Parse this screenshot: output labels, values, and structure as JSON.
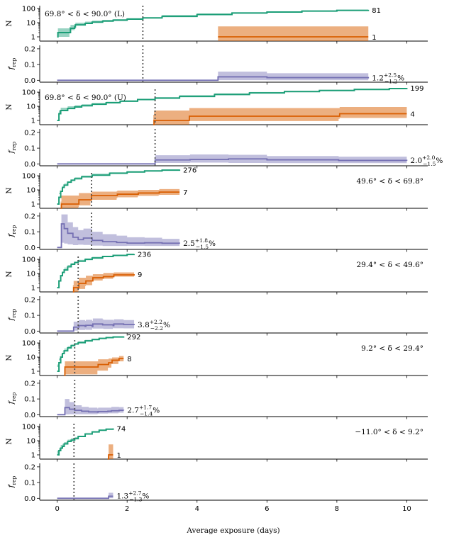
{
  "figure": {
    "xlabel": "Average exposure (days)",
    "x_ticks": [
      "0",
      "2",
      "4",
      "6",
      "8",
      "10"
    ],
    "xlim": [
      -0.5,
      10.6
    ]
  },
  "colors": {
    "count_all": "#1b9e77",
    "count_rep": "#d95f02",
    "frac": "#7570b3",
    "marker": "#555555"
  },
  "axis_labels": {
    "n": "N",
    "f_base": "f",
    "f_sub": "rep"
  },
  "n_ticks": [
    "100",
    "10",
    "1"
  ],
  "f_ticks": [
    "0.2",
    "0.1",
    "0.0"
  ],
  "chart_data": [
    {
      "type": "line",
      "band": "69.8° < δ < 90.0° (L)",
      "band_pos": "top-left",
      "marker_x": 2.45,
      "total": {
        "label": "81",
        "x": [
          0,
          0.02,
          0.35,
          0.38,
          0.5,
          0.52,
          0.8,
          1.0,
          1.3,
          1.6,
          2.0,
          2.45,
          3.0,
          4.0,
          5.0,
          6.0,
          7.0,
          8.0,
          8.9
        ],
        "n": [
          1,
          2,
          2,
          4,
          5,
          7,
          9,
          11,
          13,
          15,
          18,
          22,
          28,
          38,
          48,
          57,
          66,
          74,
          81
        ],
        "lo": [
          1,
          1,
          1,
          2,
          3,
          5,
          7,
          9,
          11,
          13,
          16,
          20,
          25,
          35,
          45,
          54,
          63,
          71,
          78
        ],
        "hi": [
          2,
          4,
          5,
          7,
          8,
          10,
          12,
          14,
          16,
          18,
          21,
          25,
          31,
          41,
          51,
          60,
          69,
          77,
          84
        ]
      },
      "repeaters": {
        "label": "1",
        "x": [
          4.6,
          8.9
        ],
        "n": [
          1,
          1
        ],
        "lo": [
          0.5,
          0.5
        ],
        "hi": [
          5.5,
          5.5
        ]
      },
      "fraction": {
        "value": "1.2",
        "plus": "+2.5",
        "minus": "−1.2",
        "unit": "%",
        "x": [
          0,
          4.55,
          4.6,
          6.0,
          8.9
        ],
        "f": [
          0,
          0,
          0.022,
          0.017,
          0.012
        ],
        "lo": [
          0,
          0,
          0.001,
          0.001,
          0.0005
        ],
        "hi": [
          0.003,
          0.003,
          0.055,
          0.045,
          0.037
        ]
      }
    },
    {
      "type": "line",
      "band": "69.8° < δ < 90.0° (U)",
      "band_pos": "top-left",
      "marker_x": 2.8,
      "total": {
        "label": "199",
        "x": [
          0,
          0.05,
          0.1,
          0.3,
          0.5,
          0.7,
          1.0,
          1.4,
          1.8,
          2.3,
          2.8,
          3.5,
          4.5,
          5.5,
          6.5,
          7.5,
          8.5,
          9.5,
          10.0
        ],
        "n": [
          1,
          3,
          5,
          7,
          9,
          11,
          14,
          18,
          23,
          30,
          38,
          50,
          68,
          88,
          110,
          130,
          155,
          180,
          199
        ],
        "lo": [
          1,
          2,
          3,
          5,
          7,
          9,
          12,
          15,
          20,
          26,
          34,
          45,
          62,
          82,
          103,
          123,
          147,
          172,
          190
        ],
        "hi": [
          2,
          5,
          8,
          10,
          12,
          14,
          17,
          21,
          27,
          34,
          43,
          56,
          75,
          95,
          118,
          138,
          164,
          189,
          208
        ]
      },
      "repeaters": {
        "label": "4",
        "x": [
          2.75,
          2.77,
          3.75,
          3.78,
          4.9,
          8.05,
          8.08,
          10.0
        ],
        "n": [
          0.5,
          1,
          1,
          2,
          2,
          2,
          3,
          3
        ],
        "lo": [
          0.5,
          0.5,
          0.5,
          0.5,
          0.9,
          0.9,
          1.3,
          1.5
        ],
        "hi": [
          2.5,
          5,
          5,
          7.5,
          7.5,
          7.5,
          9,
          9
        ]
      },
      "fraction": {
        "value": "2.0",
        "plus": "+2.0",
        "minus": "−1.5",
        "unit": "%",
        "x": [
          0,
          2.75,
          2.8,
          3.8,
          4.9,
          6.0,
          8.05,
          10.0
        ],
        "f": [
          0,
          0,
          0.025,
          0.028,
          0.032,
          0.026,
          0.022,
          0.02
        ],
        "lo": [
          0,
          0,
          0.004,
          0.006,
          0.008,
          0.006,
          0.005,
          0.005
        ],
        "hi": [
          0.003,
          0.003,
          0.055,
          0.06,
          0.058,
          0.05,
          0.046,
          0.04
        ]
      }
    },
    {
      "type": "line",
      "band": "49.6° < δ < 69.8°",
      "band_pos": "top-right",
      "marker_x": 0.98,
      "total": {
        "label": "276",
        "x": [
          0,
          0.05,
          0.1,
          0.15,
          0.2,
          0.3,
          0.4,
          0.5,
          0.7,
          1.0,
          1.5,
          2.0,
          2.5,
          3.0,
          3.5
        ],
        "n": [
          1,
          3,
          8,
          15,
          22,
          35,
          48,
          62,
          85,
          110,
          150,
          185,
          220,
          250,
          276
        ],
        "lo": [
          1,
          2,
          6,
          12,
          18,
          30,
          42,
          56,
          78,
          102,
          140,
          175,
          209,
          238,
          264
        ],
        "hi": [
          2,
          5,
          11,
          19,
          27,
          41,
          55,
          69,
          93,
          119,
          160,
          195,
          231,
          262,
          288
        ]
      },
      "repeaters": {
        "label": "7",
        "x": [
          0.1,
          0.12,
          0.6,
          0.62,
          0.95,
          0.98,
          1.7,
          1.72,
          2.3,
          2.32,
          2.9,
          2.92,
          3.5
        ],
        "n": [
          0.5,
          1,
          1,
          2,
          2,
          4,
          4,
          5,
          5,
          6,
          6,
          7,
          7
        ],
        "lo": [
          0.5,
          0.5,
          0.5,
          0.6,
          0.8,
          1.6,
          2.0,
          2.6,
          3.0,
          3.4,
          3.8,
          4.2,
          4.5
        ],
        "hi": [
          1.5,
          4,
          4,
          6,
          6,
          7.5,
          8,
          9,
          9,
          10,
          10,
          11.5,
          11.5
        ]
      },
      "fraction": {
        "value": "2.5",
        "plus": "+1.8",
        "minus": "−1.5",
        "unit": "%",
        "x": [
          0,
          0.1,
          0.12,
          0.2,
          0.3,
          0.45,
          0.6,
          0.75,
          1.0,
          1.3,
          1.7,
          2.0,
          2.5,
          3.0,
          3.5
        ],
        "f": [
          0,
          0,
          0.15,
          0.12,
          0.09,
          0.065,
          0.05,
          0.06,
          0.045,
          0.037,
          0.032,
          0.028,
          0.03,
          0.027,
          0.025
        ],
        "lo": [
          0,
          0,
          0.02,
          0.03,
          0.025,
          0.02,
          0.015,
          0.018,
          0.016,
          0.012,
          0.01,
          0.01,
          0.011,
          0.01,
          0.01
        ],
        "hi": [
          0.003,
          0.003,
          0.21,
          0.21,
          0.16,
          0.13,
          0.11,
          0.12,
          0.1,
          0.085,
          0.075,
          0.065,
          0.062,
          0.055,
          0.045
        ]
      }
    },
    {
      "type": "line",
      "band": "29.4° < δ < 49.6°",
      "band_pos": "top-right",
      "marker_x": 0.6,
      "total": {
        "label": "236",
        "x": [
          0,
          0.05,
          0.1,
          0.15,
          0.2,
          0.3,
          0.4,
          0.5,
          0.6,
          0.8,
          1.0,
          1.3,
          1.6,
          2.0,
          2.2
        ],
        "n": [
          1,
          3,
          7,
          12,
          18,
          30,
          45,
          60,
          75,
          100,
          125,
          160,
          190,
          222,
          236
        ],
        "lo": [
          1,
          2,
          5,
          10,
          15,
          26,
          40,
          54,
          68,
          92,
          116,
          150,
          179,
          210,
          223
        ],
        "hi": [
          2,
          5,
          10,
          15,
          22,
          35,
          51,
          67,
          82,
          108,
          134,
          170,
          201,
          234,
          249
        ]
      },
      "repeaters": {
        "label": "9",
        "x": [
          0.45,
          0.47,
          0.6,
          0.62,
          0.8,
          0.82,
          1.0,
          1.02,
          1.3,
          1.32,
          1.6,
          1.62,
          2.2
        ],
        "n": [
          0.5,
          1,
          1,
          2,
          2,
          3,
          3,
          5,
          5,
          6,
          6,
          8,
          9
        ],
        "lo": [
          0.5,
          0.5,
          0.5,
          0.6,
          0.8,
          1.3,
          1.5,
          2.8,
          3.2,
          4.0,
          4.2,
          5.5,
          6.0
        ],
        "hi": [
          1.5,
          3,
          3,
          5,
          5,
          7,
          7,
          9,
          9,
          11,
          11,
          12,
          13
        ]
      },
      "fraction": {
        "value": "3.8",
        "plus": "+2.2",
        "minus": "−2.2",
        "unit": "%",
        "x": [
          0,
          0.45,
          0.47,
          0.6,
          0.62,
          0.8,
          0.82,
          1.0,
          1.02,
          1.3,
          1.32,
          1.6,
          1.62,
          1.9,
          2.2
        ],
        "f": [
          0,
          0,
          0.025,
          0.025,
          0.035,
          0.03,
          0.037,
          0.03,
          0.045,
          0.04,
          0.04,
          0.035,
          0.045,
          0.042,
          0.038
        ],
        "lo": [
          0,
          0,
          0.003,
          0.003,
          0.008,
          0.007,
          0.01,
          0.008,
          0.018,
          0.016,
          0.016,
          0.014,
          0.02,
          0.018,
          0.017
        ],
        "hi": [
          0.003,
          0.003,
          0.06,
          0.055,
          0.07,
          0.065,
          0.072,
          0.065,
          0.08,
          0.075,
          0.072,
          0.068,
          0.075,
          0.07,
          0.06
        ]
      }
    },
    {
      "type": "line",
      "band": "9.2° < δ < 29.4°",
      "band_pos": "top-right",
      "marker_x": 0.5,
      "total": {
        "label": "292",
        "x": [
          0,
          0.05,
          0.1,
          0.15,
          0.2,
          0.3,
          0.4,
          0.5,
          0.6,
          0.8,
          1.0,
          1.2,
          1.4,
          1.6,
          1.9
        ],
        "n": [
          1,
          4,
          10,
          18,
          28,
          45,
          65,
          85,
          105,
          140,
          175,
          210,
          240,
          265,
          292
        ],
        "lo": [
          1,
          3,
          8,
          15,
          24,
          40,
          59,
          78,
          97,
          131,
          165,
          199,
          228,
          252,
          278
        ],
        "hi": [
          2,
          6,
          13,
          22,
          33,
          51,
          72,
          93,
          114,
          150,
          186,
          222,
          253,
          279,
          307
        ]
      },
      "repeaters": {
        "label": "8",
        "x": [
          0.2,
          0.22,
          1.15,
          1.17,
          1.45,
          1.47,
          1.55,
          1.57,
          1.75,
          1.77,
          1.9
        ],
        "n": [
          0.5,
          2,
          2,
          3,
          3,
          4,
          4,
          6,
          6,
          8,
          8
        ],
        "lo": [
          0.5,
          0.6,
          0.6,
          1.1,
          1.1,
          1.8,
          1.8,
          3.2,
          3.2,
          5.0,
          5.0
        ],
        "hi": [
          1.5,
          5,
          5,
          7,
          7,
          8,
          8,
          9.5,
          9.5,
          12,
          12
        ]
      },
      "fraction": {
        "value": "2.7",
        "plus": "+1.7",
        "minus": "−1.4",
        "unit": "%",
        "x": [
          0,
          0.2,
          0.22,
          0.35,
          0.5,
          0.7,
          0.9,
          1.15,
          1.17,
          1.45,
          1.55,
          1.75,
          1.77,
          1.9
        ],
        "f": [
          0,
          0,
          0.045,
          0.035,
          0.028,
          0.022,
          0.018,
          0.016,
          0.02,
          0.022,
          0.025,
          0.025,
          0.028,
          0.027
        ],
        "lo": [
          0,
          0,
          0.002,
          0.002,
          0.003,
          0.003,
          0.003,
          0.003,
          0.005,
          0.007,
          0.009,
          0.009,
          0.012,
          0.013
        ],
        "hi": [
          0.003,
          0.003,
          0.1,
          0.08,
          0.06,
          0.05,
          0.045,
          0.04,
          0.045,
          0.045,
          0.05,
          0.05,
          0.048,
          0.044
        ]
      }
    },
    {
      "type": "line",
      "band": "−11.0° < δ < 9.2°",
      "band_pos": "top-right",
      "marker_x": 0.48,
      "total": {
        "label": "74",
        "x": [
          0,
          0.05,
          0.1,
          0.15,
          0.2,
          0.3,
          0.4,
          0.5,
          0.6,
          0.8,
          1.0,
          1.2,
          1.4,
          1.6
        ],
        "n": [
          1,
          2,
          3,
          4,
          6,
          9,
          11,
          14,
          20,
          30,
          42,
          55,
          65,
          74
        ],
        "lo": [
          1,
          1,
          2,
          3,
          4,
          6,
          8,
          10,
          16,
          25,
          37,
          49,
          59,
          67
        ],
        "hi": [
          2,
          3,
          5,
          6,
          8,
          12,
          15,
          18,
          25,
          36,
          48,
          61,
          71,
          81
        ]
      },
      "repeaters": {
        "label": "1",
        "x": [
          1.45,
          1.47,
          1.6
        ],
        "n": [
          0.5,
          1,
          1
        ],
        "lo": [
          0.5,
          0.5,
          0.5
        ],
        "hi": [
          0.8,
          5.5,
          5.5
        ]
      },
      "fraction": {
        "value": "1.3",
        "plus": "+2.7",
        "minus": "−1.3",
        "unit": "%",
        "x": [
          0,
          1.45,
          1.47,
          1.6
        ],
        "f": [
          0,
          0,
          0.013,
          0.013
        ],
        "lo": [
          0,
          0,
          0.0008,
          0.0008
        ],
        "hi": [
          0.003,
          0.003,
          0.035,
          0.035
        ]
      }
    }
  ]
}
